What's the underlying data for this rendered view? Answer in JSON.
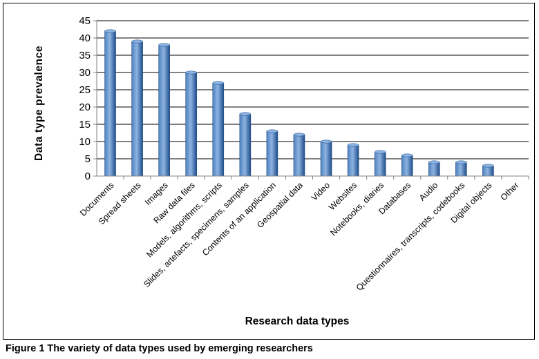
{
  "caption": "Figure 1 The variety of data types used by emerging researchers",
  "colors": {
    "bar_light": "#8db3e2",
    "bar_mid": "#4f81bd",
    "bar_dark": "#1f4e8a",
    "grid": "#000000",
    "axis": "#808080"
  },
  "chart_data": {
    "type": "bar",
    "title": "",
    "xlabel": "Research data types",
    "ylabel": "Data type prevalence",
    "ylim": [
      0,
      45
    ],
    "yticks": [
      0,
      5,
      10,
      15,
      20,
      25,
      30,
      35,
      40,
      45
    ],
    "grid": true,
    "legend": "none",
    "categories": [
      "Documents",
      "Spread sheets",
      "Images",
      "Raw data files",
      "Models, algorithms, scripts",
      "Slides, artefacts, specimens, samples",
      "Contents of an application",
      "Geospatial data",
      "Video",
      "Websites",
      "Notebooks, diaries",
      "Databases",
      "Audio",
      "Questionnaires, transcripts, codebooks",
      "Digital objects",
      "Other"
    ],
    "values": [
      42,
      39,
      38,
      30,
      27,
      18,
      13,
      12,
      10,
      9,
      7,
      6,
      4,
      4,
      3,
      0
    ]
  }
}
